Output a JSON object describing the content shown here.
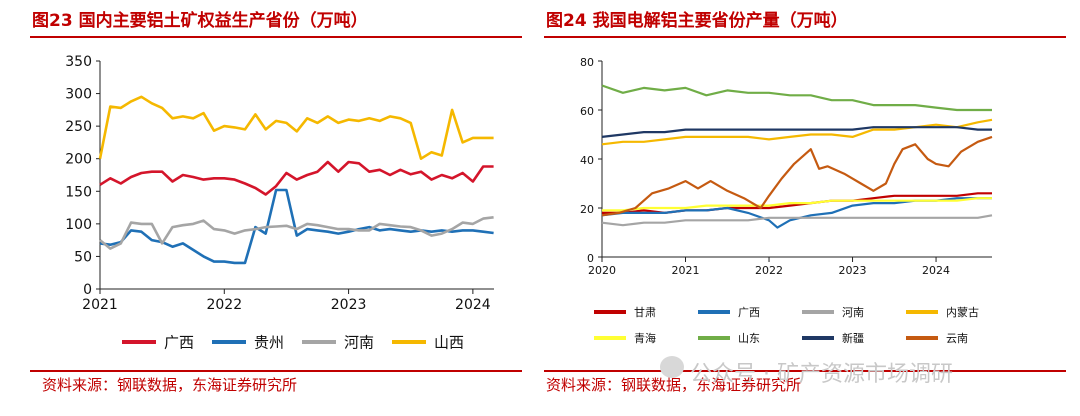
{
  "panels": [
    {
      "title": "图23  国内主要铝土矿权益生产省份（万吨）",
      "source": "资料来源：钢联数据，东海证券研究所"
    },
    {
      "title": "图24  我国电解铝主要省份产量（万吨）",
      "source": "资料来源：钢联数据，东海证券研究所"
    }
  ],
  "watermark": "公众号 · 矿产资源市场调研",
  "chart_data": [
    {
      "type": "line",
      "title": "图23  国内主要铝土矿权益生产省份（万吨）",
      "xlabel": "",
      "ylabel": "",
      "ylim": [
        0,
        350
      ],
      "yticks": [
        0,
        50,
        100,
        150,
        200,
        250,
        300,
        350
      ],
      "xlim": [
        2021.0,
        2024.17
      ],
      "xticks": [
        2021,
        2022,
        2023,
        2024
      ],
      "legend_position": "bottom",
      "grid": false,
      "series": [
        {
          "name": "广西",
          "color": "#d4152b",
          "x": [
            2021.0,
            2021.083,
            2021.167,
            2021.25,
            2021.333,
            2021.417,
            2021.5,
            2021.583,
            2021.667,
            2021.75,
            2021.833,
            2021.917,
            2022.0,
            2022.083,
            2022.167,
            2022.25,
            2022.333,
            2022.417,
            2022.5,
            2022.583,
            2022.667,
            2022.75,
            2022.833,
            2022.917,
            2023.0,
            2023.083,
            2023.167,
            2023.25,
            2023.333,
            2023.417,
            2023.5,
            2023.583,
            2023.667,
            2023.75,
            2023.833,
            2023.917,
            2024.0,
            2024.083,
            2024.167
          ],
          "values": [
            160,
            170,
            162,
            172,
            178,
            180,
            180,
            165,
            175,
            172,
            168,
            170,
            170,
            168,
            162,
            155,
            145,
            158,
            178,
            168,
            175,
            180,
            195,
            180,
            195,
            193,
            180,
            183,
            175,
            183,
            176,
            180,
            168,
            175,
            170,
            178,
            165,
            188,
            188
          ]
        },
        {
          "name": "贵州",
          "color": "#1f70b6",
          "x": [
            2021.0,
            2021.083,
            2021.167,
            2021.25,
            2021.333,
            2021.417,
            2021.5,
            2021.583,
            2021.667,
            2021.75,
            2021.833,
            2021.917,
            2022.0,
            2022.083,
            2022.167,
            2022.25,
            2022.333,
            2022.417,
            2022.5,
            2022.583,
            2022.667,
            2022.75,
            2022.833,
            2022.917,
            2023.0,
            2023.083,
            2023.167,
            2023.25,
            2023.333,
            2023.417,
            2023.5,
            2023.583,
            2023.667,
            2023.75,
            2023.833,
            2023.917,
            2024.0,
            2024.083,
            2024.167
          ],
          "values": [
            70,
            68,
            72,
            90,
            88,
            75,
            72,
            65,
            70,
            60,
            50,
            42,
            42,
            40,
            40,
            95,
            85,
            152,
            152,
            82,
            92,
            90,
            88,
            85,
            88,
            92,
            95,
            90,
            92,
            90,
            88,
            90,
            88,
            90,
            88,
            90,
            90,
            88,
            86
          ]
        },
        {
          "name": "河南",
          "color": "#a5a5a5",
          "x": [
            2021.0,
            2021.083,
            2021.167,
            2021.25,
            2021.333,
            2021.417,
            2021.5,
            2021.583,
            2021.667,
            2021.75,
            2021.833,
            2021.917,
            2022.0,
            2022.083,
            2022.167,
            2022.25,
            2022.333,
            2022.417,
            2022.5,
            2022.583,
            2022.667,
            2022.75,
            2022.833,
            2022.917,
            2023.0,
            2023.083,
            2023.167,
            2023.25,
            2023.333,
            2023.417,
            2023.5,
            2023.583,
            2023.667,
            2023.75,
            2023.833,
            2023.917,
            2024.0,
            2024.083,
            2024.167
          ],
          "values": [
            75,
            62,
            70,
            102,
            100,
            100,
            70,
            95,
            98,
            100,
            105,
            92,
            90,
            85,
            90,
            92,
            95,
            96,
            97,
            92,
            100,
            98,
            95,
            92,
            92,
            90,
            90,
            100,
            98,
            96,
            95,
            90,
            82,
            85,
            92,
            102,
            100,
            108,
            110
          ]
        },
        {
          "name": "山西",
          "color": "#f5b800",
          "x": [
            2021.0,
            2021.083,
            2021.167,
            2021.25,
            2021.333,
            2021.417,
            2021.5,
            2021.583,
            2021.667,
            2021.75,
            2021.833,
            2021.917,
            2022.0,
            2022.083,
            2022.167,
            2022.25,
            2022.333,
            2022.417,
            2022.5,
            2022.583,
            2022.667,
            2022.75,
            2022.833,
            2022.917,
            2023.0,
            2023.083,
            2023.167,
            2023.25,
            2023.333,
            2023.417,
            2023.5,
            2023.583,
            2023.667,
            2023.75,
            2023.833,
            2023.917,
            2024.0,
            2024.083,
            2024.167
          ],
          "values": [
            200,
            280,
            278,
            288,
            295,
            285,
            278,
            262,
            265,
            262,
            270,
            243,
            250,
            248,
            245,
            268,
            245,
            258,
            255,
            242,
            262,
            255,
            265,
            255,
            260,
            258,
            262,
            258,
            265,
            262,
            255,
            200,
            210,
            205,
            275,
            225,
            232,
            232,
            232
          ]
        }
      ]
    },
    {
      "type": "line",
      "title": "图24  我国电解铝主要省份产量（万吨）",
      "xlabel": "",
      "ylabel": "",
      "ylim": [
        0,
        80
      ],
      "yticks": [
        0,
        20,
        40,
        60,
        80
      ],
      "xlim": [
        2020.0,
        2024.67
      ],
      "xticks": [
        2020,
        2021,
        2022,
        2023,
        2024
      ],
      "legend_position": "bottom",
      "grid": false,
      "series": [
        {
          "name": "甘肃",
          "color": "#c00000",
          "x": [
            2020.0,
            2020.25,
            2020.5,
            2020.75,
            2021.0,
            2021.25,
            2021.5,
            2021.75,
            2022.0,
            2022.25,
            2022.5,
            2022.75,
            2023.0,
            2023.25,
            2023.5,
            2023.75,
            2024.0,
            2024.25,
            2024.5,
            2024.67
          ],
          "values": [
            18,
            18,
            19,
            18,
            19,
            19,
            20,
            20,
            20,
            21,
            22,
            23,
            23,
            24,
            25,
            25,
            25,
            25,
            26,
            26
          ]
        },
        {
          "name": "广西",
          "color": "#1f70b6",
          "x": [
            2020.0,
            2020.25,
            2020.5,
            2020.75,
            2021.0,
            2021.25,
            2021.5,
            2021.75,
            2022.0,
            2022.1,
            2022.25,
            2022.5,
            2022.75,
            2023.0,
            2023.25,
            2023.5,
            2023.75,
            2024.0,
            2024.25,
            2024.5,
            2024.67
          ],
          "values": [
            17,
            18,
            18,
            18,
            19,
            19,
            20,
            18,
            15,
            12,
            15,
            17,
            18,
            21,
            22,
            22,
            23,
            23,
            24,
            24,
            24
          ]
        },
        {
          "name": "河南",
          "color": "#a5a5a5",
          "x": [
            2020.0,
            2020.25,
            2020.5,
            2020.75,
            2021.0,
            2021.25,
            2021.5,
            2021.75,
            2022.0,
            2022.25,
            2022.5,
            2022.75,
            2023.0,
            2023.25,
            2023.5,
            2023.75,
            2024.0,
            2024.25,
            2024.5,
            2024.67
          ],
          "values": [
            14,
            13,
            14,
            14,
            15,
            15,
            15,
            15,
            16,
            16,
            16,
            16,
            16,
            16,
            16,
            16,
            16,
            16,
            16,
            17
          ]
        },
        {
          "name": "内蒙古",
          "color": "#f5b800",
          "x": [
            2020.0,
            2020.25,
            2020.5,
            2020.75,
            2021.0,
            2021.25,
            2021.5,
            2021.75,
            2022.0,
            2022.25,
            2022.5,
            2022.75,
            2023.0,
            2023.25,
            2023.5,
            2023.75,
            2024.0,
            2024.25,
            2024.5,
            2024.67
          ],
          "values": [
            46,
            47,
            47,
            48,
            49,
            49,
            49,
            49,
            48,
            49,
            50,
            50,
            49,
            52,
            52,
            53,
            54,
            53,
            55,
            56
          ]
        },
        {
          "name": "青海",
          "color": "#ffff33",
          "x": [
            2020.0,
            2020.25,
            2020.5,
            2020.75,
            2021.0,
            2021.25,
            2021.5,
            2021.75,
            2022.0,
            2022.25,
            2022.5,
            2022.75,
            2023.0,
            2023.25,
            2023.5,
            2023.75,
            2024.0,
            2024.25,
            2024.5,
            2024.67
          ],
          "values": [
            19,
            19,
            20,
            20,
            20,
            21,
            21,
            21,
            21,
            22,
            22,
            23,
            23,
            23,
            23,
            23,
            23,
            23,
            24,
            24
          ]
        },
        {
          "name": "山东",
          "color": "#70ad47",
          "x": [
            2020.0,
            2020.25,
            2020.5,
            2020.75,
            2021.0,
            2021.25,
            2021.5,
            2021.75,
            2022.0,
            2022.25,
            2022.5,
            2022.75,
            2023.0,
            2023.25,
            2023.5,
            2023.75,
            2024.0,
            2024.25,
            2024.5,
            2024.67
          ],
          "values": [
            70,
            67,
            69,
            68,
            69,
            66,
            68,
            67,
            67,
            66,
            66,
            64,
            64,
            62,
            62,
            62,
            61,
            60,
            60,
            60
          ]
        },
        {
          "name": "新疆",
          "color": "#1f3864",
          "x": [
            2020.0,
            2020.25,
            2020.5,
            2020.75,
            2021.0,
            2021.25,
            2021.5,
            2021.75,
            2022.0,
            2022.25,
            2022.5,
            2022.75,
            2023.0,
            2023.25,
            2023.5,
            2023.75,
            2024.0,
            2024.25,
            2024.5,
            2024.67
          ],
          "values": [
            49,
            50,
            51,
            51,
            52,
            52,
            52,
            52,
            52,
            52,
            52,
            52,
            52,
            53,
            53,
            53,
            53,
            53,
            52,
            52
          ]
        },
        {
          "name": "云南",
          "color": "#c55a11",
          "x": [
            2020.0,
            2020.2,
            2020.4,
            2020.6,
            2020.8,
            2021.0,
            2021.15,
            2021.3,
            2021.5,
            2021.7,
            2021.9,
            2022.0,
            2022.15,
            2022.3,
            2022.5,
            2022.6,
            2022.7,
            2022.9,
            2023.0,
            2023.1,
            2023.25,
            2023.4,
            2023.5,
            2023.6,
            2023.75,
            2023.9,
            2024.0,
            2024.15,
            2024.3,
            2024.5,
            2024.67
          ],
          "values": [
            17,
            18,
            20,
            26,
            28,
            31,
            28,
            31,
            27,
            24,
            20,
            25,
            32,
            38,
            44,
            36,
            37,
            34,
            32,
            30,
            27,
            30,
            38,
            44,
            46,
            40,
            38,
            37,
            43,
            47,
            49
          ]
        }
      ]
    }
  ]
}
